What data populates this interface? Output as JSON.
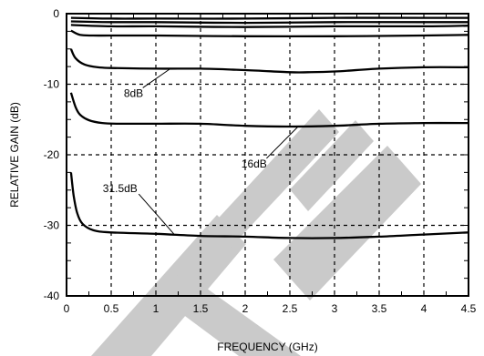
{
  "chart_data": {
    "type": "line",
    "title": "",
    "xlabel": "FREQUENCY (GHz)",
    "ylabel": "RELATIVE GAIN (dB)",
    "xlim": [
      0,
      4.5
    ],
    "ylim": [
      -40,
      0
    ],
    "xticks": [
      0,
      0.5,
      1,
      1.5,
      2,
      2.5,
      3,
      3.5,
      4,
      4.5
    ],
    "xtick_labels": [
      "0",
      "0.5",
      "1",
      "1.5",
      "2",
      "2.5",
      "3",
      "3.5",
      "4",
      "4.5"
    ],
    "yticks": [
      0,
      -10,
      -20,
      -30,
      -40
    ],
    "ytick_labels": [
      "0",
      "-10",
      "-20",
      "-30",
      "-40"
    ],
    "grid": true,
    "grid_style": "dashed",
    "legend": "none",
    "series": [
      {
        "x": [
          0.05,
          0.5,
          1,
          2,
          3,
          4,
          4.5
        ],
        "y": [
          -0.6,
          -0.7,
          -0.7,
          -0.7,
          -0.6,
          -0.6,
          -0.6
        ]
      },
      {
        "x": [
          0.05,
          0.5,
          1,
          2,
          3,
          4,
          4.5
        ],
        "y": [
          -1.1,
          -1.2,
          -1.2,
          -1.3,
          -1.2,
          -1.2,
          -1.2
        ]
      },
      {
        "x": [
          0.05,
          0.5,
          1,
          2,
          3,
          4,
          4.5
        ],
        "y": [
          -1.6,
          -1.8,
          -1.8,
          -1.9,
          -1.8,
          -1.8,
          -1.7
        ]
      },
      {
        "x": [
          0.05,
          0.15,
          0.3,
          0.5,
          1,
          2,
          3,
          4,
          4.5
        ],
        "y": [
          -2.4,
          -3.0,
          -3.1,
          -3.1,
          -3.1,
          -3.2,
          -3.2,
          -3.1,
          -3.0
        ]
      },
      {
        "x": [
          0.05,
          0.1,
          0.2,
          0.35,
          0.5,
          1,
          1.5,
          2,
          2.5,
          2.7,
          3,
          3.5,
          4,
          4.5
        ],
        "y": [
          -5.0,
          -6.3,
          -7.2,
          -7.6,
          -7.7,
          -7.8,
          -7.8,
          -8.0,
          -8.3,
          -8.3,
          -8.2,
          -7.8,
          -7.6,
          -7.6
        ]
      },
      {
        "x": [
          0.05,
          0.1,
          0.15,
          0.25,
          0.4,
          0.6,
          1,
          1.5,
          2,
          2.5,
          3,
          3.5,
          4,
          4.5
        ],
        "y": [
          -11.2,
          -13.2,
          -14.3,
          -15.1,
          -15.5,
          -15.6,
          -15.6,
          -15.6,
          -15.9,
          -16.0,
          -15.9,
          -15.6,
          -15.5,
          -15.5
        ]
      },
      {
        "x": [
          0.05,
          0.08,
          0.12,
          0.18,
          0.3,
          0.5,
          1,
          1.5,
          2,
          2.5,
          3,
          3.5,
          4,
          4.5
        ],
        "y": [
          -22.5,
          -25.8,
          -28.3,
          -29.8,
          -30.7,
          -31.0,
          -31.2,
          -31.5,
          -31.6,
          -31.8,
          -31.8,
          -31.6,
          -31.3,
          -31.0
        ]
      }
    ],
    "annotations": [
      {
        "text": "8dB",
        "x": 0.75,
        "y": -11.8,
        "pointer_to": [
          1.15,
          -7.9
        ]
      },
      {
        "text": "16dB",
        "x": 2.1,
        "y": -21.8,
        "pointer_to": [
          2.6,
          -15.9
        ]
      },
      {
        "text": "31.5dB",
        "x": 0.6,
        "y": -25.3,
        "pointer_to": [
          1.2,
          -31.2
        ]
      }
    ]
  }
}
